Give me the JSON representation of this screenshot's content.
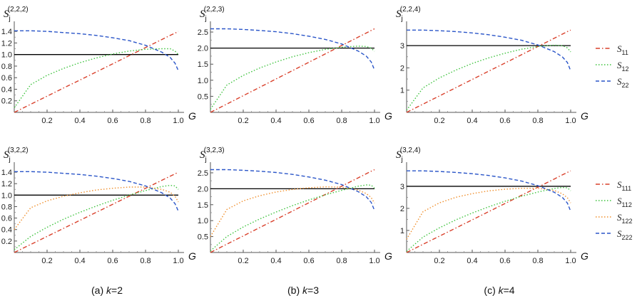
{
  "colors": {
    "S11": "#d9402b",
    "S12": "#3fc43f",
    "S22": "#2a55c8",
    "S111": "#d9402b",
    "S112": "#3fc43f",
    "S122": "#f0902e",
    "S222": "#2a55c8",
    "ref": "#000000"
  },
  "captions": [
    {
      "prefix": "(a) ",
      "k": "k",
      "suffix": "=2"
    },
    {
      "prefix": "(b) ",
      "k": "k",
      "suffix": "=3"
    },
    {
      "prefix": "(c) ",
      "k": "k",
      "suffix": "=4"
    }
  ],
  "legends": [
    {
      "items": [
        {
          "base": "S",
          "sub": "11",
          "key": "S11",
          "dash": "dashdot"
        },
        {
          "base": "S",
          "sub": "12",
          "key": "S12",
          "dash": "dot"
        },
        {
          "base": "S",
          "sub": "22",
          "key": "S22",
          "dash": "dash"
        }
      ]
    },
    {
      "items": [
        {
          "base": "S",
          "sub": "111",
          "key": "S111",
          "dash": "dashdot"
        },
        {
          "base": "S",
          "sub": "112",
          "key": "S112",
          "dash": "dot"
        },
        {
          "base": "S",
          "sub": "122",
          "key": "S122",
          "dash": "dot"
        },
        {
          "base": "S",
          "sub": "222",
          "key": "S222",
          "dash": "dash"
        }
      ]
    }
  ],
  "chart_data": [
    {
      "type": "line",
      "ylabel_base": "S",
      "ylabel_sub": "j",
      "ylabel_sup": "(2,2,2)",
      "xlabel": "G",
      "xlim": [
        0,
        1
      ],
      "ylim": [
        0,
        1.5
      ],
      "xticks": [
        "0.2",
        "0.4",
        "0.6",
        "0.8",
        "1.0"
      ],
      "xtick_values": [
        0.2,
        0.4,
        0.6,
        0.8,
        1.0
      ],
      "yticks": [
        "0.2",
        "0.4",
        "0.6",
        "0.8",
        "1.0",
        "1.2",
        "1.4"
      ],
      "ytick_values": [
        0.2,
        0.4,
        0.6,
        0.8,
        1.0,
        1.2,
        1.4
      ],
      "reference_line": 1.0,
      "x": [
        0,
        0.1,
        0.2,
        0.3,
        0.4,
        0.5,
        0.6,
        0.7,
        0.8,
        0.9,
        0.95,
        0.98,
        1.0
      ],
      "series": [
        {
          "key": "S11",
          "values": [
            0,
            0.14,
            0.28,
            0.42,
            0.56,
            0.7,
            0.84,
            0.98,
            1.12,
            1.26,
            1.33,
            1.37,
            1.4
          ]
        },
        {
          "key": "S12",
          "values": [
            0.08,
            0.48,
            0.64,
            0.76,
            0.86,
            0.94,
            1.01,
            1.06,
            1.09,
            1.1,
            1.1,
            1.06,
            1.0
          ]
        },
        {
          "key": "S22",
          "values": [
            1.41,
            1.41,
            1.4,
            1.38,
            1.36,
            1.33,
            1.29,
            1.24,
            1.16,
            1.04,
            0.95,
            0.85,
            0.72
          ]
        }
      ]
    },
    {
      "type": "line",
      "ylabel_base": "S",
      "ylabel_sub": "j",
      "ylabel_sup": "(2,2,3)",
      "xlabel": "G",
      "xlim": [
        0,
        1
      ],
      "ylim": [
        0,
        2.7
      ],
      "xticks": [
        "0.2",
        "0.4",
        "0.6",
        "0.8",
        "1.0"
      ],
      "xtick_values": [
        0.2,
        0.4,
        0.6,
        0.8,
        1.0
      ],
      "yticks": [
        "0.5",
        "1.0",
        "1.5",
        "2.0",
        "2.5"
      ],
      "ytick_values": [
        0.5,
        1.0,
        1.5,
        2.0,
        2.5
      ],
      "reference_line": 2.0,
      "x": [
        0,
        0.1,
        0.2,
        0.3,
        0.4,
        0.5,
        0.6,
        0.7,
        0.8,
        0.9,
        0.95,
        0.98,
        1.0
      ],
      "series": [
        {
          "key": "S11",
          "values": [
            0,
            0.26,
            0.52,
            0.78,
            1.04,
            1.3,
            1.56,
            1.82,
            2.08,
            2.34,
            2.47,
            2.55,
            2.6
          ]
        },
        {
          "key": "S12",
          "values": [
            0.1,
            0.85,
            1.15,
            1.38,
            1.57,
            1.73,
            1.86,
            1.96,
            2.03,
            2.06,
            2.05,
            2.0,
            1.9
          ]
        },
        {
          "key": "S22",
          "values": [
            2.6,
            2.6,
            2.58,
            2.55,
            2.51,
            2.45,
            2.37,
            2.27,
            2.13,
            1.91,
            1.75,
            1.57,
            1.32
          ]
        }
      ]
    },
    {
      "type": "line",
      "ylabel_base": "S",
      "ylabel_sub": "j",
      "ylabel_sup": "(2,2,4)",
      "xlabel": "G",
      "xlim": [
        0,
        1
      ],
      "ylim": [
        0,
        3.9
      ],
      "xticks": [
        "0.2",
        "0.4",
        "0.6",
        "0.8",
        "1.0"
      ],
      "xtick_values": [
        0.2,
        0.4,
        0.6,
        0.8,
        1.0
      ],
      "yticks": [
        "1",
        "2",
        "3"
      ],
      "ytick_values": [
        1,
        2,
        3
      ],
      "reference_line": 3.0,
      "x": [
        0,
        0.1,
        0.2,
        0.3,
        0.4,
        0.5,
        0.6,
        0.7,
        0.8,
        0.9,
        0.95,
        0.98,
        1.0
      ],
      "series": [
        {
          "key": "S11",
          "values": [
            0,
            0.37,
            0.74,
            1.11,
            1.48,
            1.85,
            2.22,
            2.59,
            2.96,
            3.33,
            3.52,
            3.63,
            3.7
          ]
        },
        {
          "key": "S12",
          "values": [
            0.1,
            1.1,
            1.55,
            1.9,
            2.2,
            2.45,
            2.66,
            2.84,
            2.96,
            3.02,
            3.0,
            2.9,
            2.72
          ]
        },
        {
          "key": "S22",
          "values": [
            3.7,
            3.7,
            3.67,
            3.63,
            3.57,
            3.49,
            3.38,
            3.24,
            3.03,
            2.73,
            2.49,
            2.24,
            1.87
          ]
        }
      ]
    },
    {
      "type": "line",
      "ylabel_base": "S",
      "ylabel_sub": "j",
      "ylabel_sup": "(3,2,2)",
      "xlabel": "G",
      "xlim": [
        0,
        1
      ],
      "ylim": [
        0,
        1.5
      ],
      "xticks": [
        "0.2",
        "0.4",
        "0.6",
        "0.8",
        "1.0"
      ],
      "xtick_values": [
        0.2,
        0.4,
        0.6,
        0.8,
        1.0
      ],
      "yticks": [
        "0.2",
        "0.4",
        "0.6",
        "0.8",
        "1.0",
        "1.2",
        "1.4"
      ],
      "ytick_values": [
        0.2,
        0.4,
        0.6,
        0.8,
        1.0,
        1.2,
        1.4
      ],
      "reference_line": 1.0,
      "x": [
        0,
        0.1,
        0.2,
        0.3,
        0.4,
        0.5,
        0.6,
        0.7,
        0.8,
        0.9,
        0.95,
        0.98,
        1.0
      ],
      "series": [
        {
          "key": "S111",
          "values": [
            0,
            0.14,
            0.28,
            0.42,
            0.56,
            0.7,
            0.84,
            0.98,
            1.12,
            1.26,
            1.33,
            1.37,
            1.4
          ]
        },
        {
          "key": "S112",
          "values": [
            0.05,
            0.28,
            0.44,
            0.58,
            0.7,
            0.81,
            0.91,
            1.0,
            1.08,
            1.15,
            1.17,
            1.16,
            1.1
          ]
        },
        {
          "key": "S122",
          "values": [
            0.4,
            0.78,
            0.9,
            0.98,
            1.04,
            1.09,
            1.12,
            1.14,
            1.14,
            1.1,
            1.05,
            0.98,
            0.88
          ]
        },
        {
          "key": "S222",
          "values": [
            1.41,
            1.41,
            1.4,
            1.38,
            1.36,
            1.33,
            1.29,
            1.24,
            1.16,
            1.04,
            0.95,
            0.85,
            0.72
          ]
        }
      ]
    },
    {
      "type": "line",
      "ylabel_base": "S",
      "ylabel_sub": "j",
      "ylabel_sup": "(3,2,3)",
      "xlabel": "G",
      "xlim": [
        0,
        1
      ],
      "ylim": [
        0,
        2.7
      ],
      "xticks": [
        "0.2",
        "0.4",
        "0.6",
        "0.8",
        "1.0"
      ],
      "xtick_values": [
        0.2,
        0.4,
        0.6,
        0.8,
        1.0
      ],
      "yticks": [
        "0.5",
        "1.0",
        "1.5",
        "2.0",
        "2.5"
      ],
      "ytick_values": [
        0.5,
        1.0,
        1.5,
        2.0,
        2.5
      ],
      "reference_line": 2.0,
      "x": [
        0,
        0.1,
        0.2,
        0.3,
        0.4,
        0.5,
        0.6,
        0.7,
        0.8,
        0.9,
        0.95,
        0.98,
        1.0
      ],
      "series": [
        {
          "key": "S111",
          "values": [
            0,
            0.26,
            0.52,
            0.78,
            1.04,
            1.3,
            1.56,
            1.82,
            2.08,
            2.34,
            2.47,
            2.55,
            2.6
          ]
        },
        {
          "key": "S112",
          "values": [
            0.05,
            0.5,
            0.8,
            1.05,
            1.27,
            1.47,
            1.65,
            1.81,
            1.95,
            2.08,
            2.12,
            2.11,
            2.02
          ]
        },
        {
          "key": "S122",
          "values": [
            0.5,
            1.35,
            1.62,
            1.78,
            1.9,
            1.98,
            2.03,
            2.06,
            2.05,
            1.96,
            1.85,
            1.72,
            1.55
          ]
        },
        {
          "key": "S222",
          "values": [
            2.6,
            2.6,
            2.58,
            2.55,
            2.51,
            2.45,
            2.37,
            2.27,
            2.13,
            1.91,
            1.75,
            1.57,
            1.32
          ]
        }
      ]
    },
    {
      "type": "line",
      "ylabel_base": "S",
      "ylabel_sub": "j",
      "ylabel_sup": "(3,2,4)",
      "xlabel": "G",
      "xlim": [
        0,
        1
      ],
      "ylim": [
        0,
        3.9
      ],
      "xticks": [
        "0.2",
        "0.4",
        "0.6",
        "0.8",
        "1.0"
      ],
      "xtick_values": [
        0.2,
        0.4,
        0.6,
        0.8,
        1.0
      ],
      "yticks": [
        "1",
        "2",
        "3"
      ],
      "ytick_values": [
        1,
        2,
        3
      ],
      "reference_line": 3.0,
      "x": [
        0,
        0.1,
        0.2,
        0.3,
        0.4,
        0.5,
        0.6,
        0.7,
        0.8,
        0.9,
        0.95,
        0.98,
        1.0
      ],
      "series": [
        {
          "key": "S111",
          "values": [
            0,
            0.37,
            0.74,
            1.11,
            1.48,
            1.85,
            2.22,
            2.59,
            2.96,
            3.33,
            3.52,
            3.63,
            3.7
          ]
        },
        {
          "key": "S112",
          "values": [
            0.05,
            0.7,
            1.12,
            1.48,
            1.79,
            2.07,
            2.32,
            2.55,
            2.74,
            2.9,
            2.95,
            2.93,
            2.8
          ]
        },
        {
          "key": "S122",
          "values": [
            0.6,
            1.85,
            2.25,
            2.5,
            2.67,
            2.79,
            2.87,
            2.91,
            2.91,
            2.81,
            2.66,
            2.48,
            2.25
          ]
        },
        {
          "key": "S222",
          "values": [
            3.7,
            3.7,
            3.67,
            3.63,
            3.57,
            3.49,
            3.38,
            3.24,
            3.03,
            2.73,
            2.49,
            2.24,
            1.87
          ]
        }
      ]
    }
  ]
}
